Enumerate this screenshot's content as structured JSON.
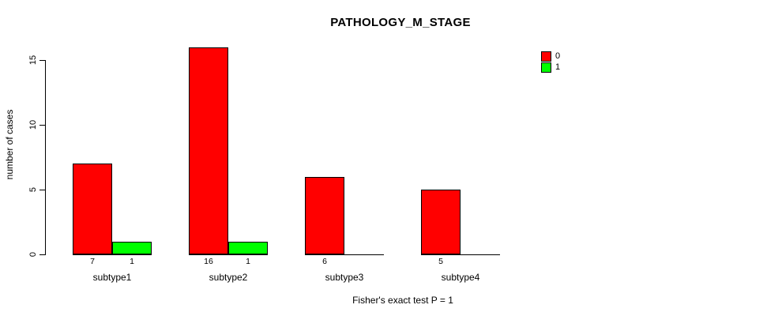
{
  "title": "PATHOLOGY_M_STAGE",
  "caption": "Fisher's exact test P = 1",
  "y_axis_label": "number of cases",
  "legend": {
    "items": [
      {
        "label": "0",
        "color": "#ff0000"
      },
      {
        "label": "1",
        "color": "#00ff00"
      }
    ]
  },
  "chart_data": {
    "type": "bar",
    "title": "PATHOLOGY_M_STAGE",
    "categories": [
      "subtype1",
      "subtype2",
      "subtype3",
      "subtype4"
    ],
    "series": [
      {
        "name": "0",
        "color": "#ff0000",
        "values": [
          7,
          16,
          6,
          5
        ]
      },
      {
        "name": "1",
        "color": "#00ff00",
        "values": [
          1,
          1,
          0,
          0
        ]
      }
    ],
    "bar_value_labels": [
      [
        "7",
        "1"
      ],
      [
        "16",
        "1"
      ],
      [
        "6",
        null
      ],
      [
        "5",
        null
      ]
    ],
    "xlabel": "",
    "ylabel": "number of cases",
    "yticks": [
      0,
      5,
      10,
      15
    ],
    "ylim": [
      0,
      16.6
    ],
    "grid": false,
    "legend_position": "topright",
    "annotation": "Fisher's exact test P = 1"
  }
}
